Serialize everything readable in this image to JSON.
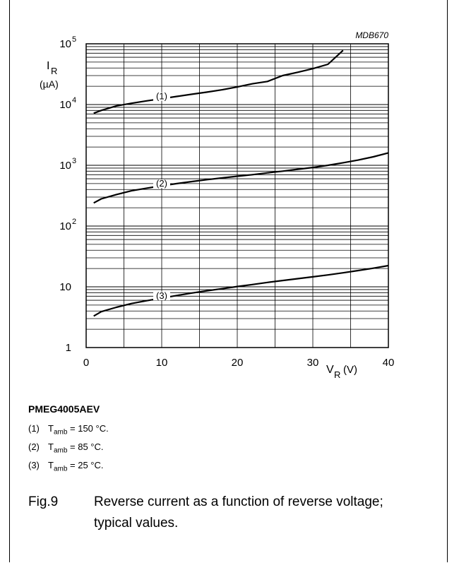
{
  "chart_data": {
    "type": "line",
    "code": "MDB670",
    "y_scale": "log",
    "ylim": [
      1,
      100000
    ],
    "xlim": [
      0,
      40
    ],
    "ylabel_main": "I",
    "ylabel_sub": "R",
    "ylabel_unit": "(µA)",
    "xlabel_main": "V",
    "xlabel_sub": "R",
    "xlabel_unit": "(V)",
    "x_ticks": [
      "0",
      "10",
      "20",
      "30",
      "40"
    ],
    "y_ticks": [
      {
        "value": 100000,
        "base": "10",
        "exp": "5"
      },
      {
        "value": 10000,
        "base": "10",
        "exp": "4"
      },
      {
        "value": 1000,
        "base": "10",
        "exp": "3"
      },
      {
        "value": 100,
        "base": "10",
        "exp": "2"
      },
      {
        "value": 10,
        "base": "10",
        "exp": ""
      },
      {
        "value": 1,
        "base": "1",
        "exp": ""
      }
    ],
    "grid": true,
    "series": [
      {
        "name": "(1)",
        "label_x": 10,
        "x": [
          1,
          2,
          4,
          6,
          8,
          10,
          12,
          14,
          16,
          18,
          20,
          22,
          24,
          26,
          28,
          30,
          32,
          34
        ],
        "values": [
          7200,
          8000,
          9500,
          10500,
          11500,
          12500,
          13600,
          14800,
          16000,
          17500,
          19500,
          22000,
          24000,
          30000,
          34000,
          39000,
          46000,
          78000
        ]
      },
      {
        "name": "(2)",
        "label_x": 10,
        "x": [
          1,
          2,
          4,
          6,
          8,
          10,
          12,
          14,
          16,
          18,
          20,
          22,
          24,
          26,
          28,
          30,
          32,
          34,
          36,
          38,
          40
        ],
        "values": [
          240,
          280,
          330,
          380,
          420,
          460,
          500,
          540,
          580,
          620,
          660,
          700,
          750,
          800,
          860,
          920,
          1000,
          1100,
          1220,
          1380,
          1600
        ]
      },
      {
        "name": "(3)",
        "label_x": 10,
        "x": [
          1,
          2,
          4,
          6,
          8,
          10,
          12,
          14,
          16,
          18,
          20,
          22,
          24,
          26,
          28,
          30,
          32,
          34,
          36,
          38,
          40
        ],
        "values": [
          3.3,
          3.9,
          4.6,
          5.3,
          5.9,
          6.5,
          7.2,
          7.9,
          8.6,
          9.3,
          10.1,
          10.9,
          11.8,
          12.7,
          13.6,
          14.6,
          15.7,
          17,
          18.5,
          20.2,
          22.3
        ]
      }
    ]
  },
  "part_number": "PMEG4005AEV",
  "notes": [
    {
      "num": "(1)",
      "t": "T",
      "sub": "amb",
      "rest": " = 150 °C."
    },
    {
      "num": "(2)",
      "t": "T",
      "sub": "amb",
      "rest": " = 85 °C."
    },
    {
      "num": "(3)",
      "t": "T",
      "sub": "amb",
      "rest": " = 25 °C."
    }
  ],
  "caption": {
    "fig": "Fig.9",
    "text": "Reverse current as a function of reverse voltage; typical values."
  }
}
